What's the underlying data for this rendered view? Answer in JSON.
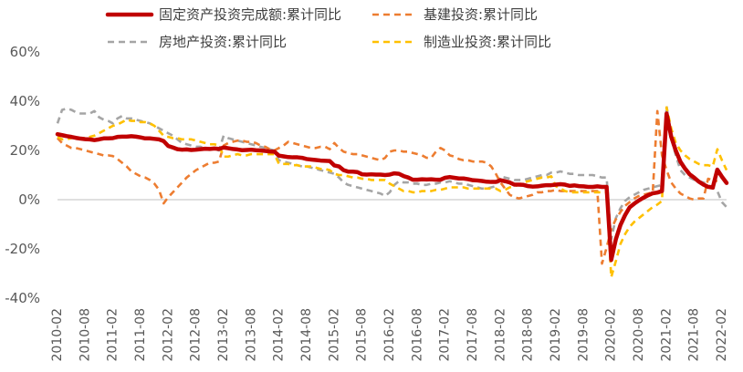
{
  "chart_data": {
    "type": "line",
    "title": "",
    "xlabel": "",
    "ylabel": "",
    "ylim": [
      -40,
      60
    ],
    "y_ticks": [
      60,
      40,
      20,
      0,
      -20,
      -40
    ],
    "y_tick_labels": [
      "60%",
      "40%",
      "20%",
      "0%",
      "-20%",
      "-40%"
    ],
    "grid": false,
    "legend_position": "top",
    "x_tick_labels": [
      "2010-02",
      "2010-08",
      "2011-02",
      "2011-08",
      "2012-02",
      "2012-08",
      "2013-02",
      "2013-08",
      "2014-02",
      "2014-08",
      "2015-02",
      "2015-08",
      "2016-02",
      "2016-08",
      "2017-02",
      "2017-08",
      "2018-02",
      "2018-08",
      "2019-02",
      "2019-08",
      "2020-02",
      "2020-08",
      "2021-02",
      "2021-08",
      "2022-02"
    ],
    "x_start": "2010-02",
    "series": [
      {
        "name": "固定资产投资完成额:累计同比",
        "color": "#c00000",
        "style": "solid",
        "values": [
          26.6,
          26.2,
          25.8,
          25.5,
          25.1,
          24.8,
          24.6,
          24.5,
          24.2,
          24.5,
          24.9,
          24.9,
          25.0,
          25.5,
          25.6,
          25.6,
          25.8,
          25.6,
          25.3,
          24.9,
          24.9,
          24.7,
          24.5,
          23.8,
          21.8,
          21.2,
          20.5,
          20.3,
          20.4,
          20.2,
          20.3,
          20.5,
          20.7,
          20.6,
          20.8,
          20.6,
          21.2,
          20.9,
          20.6,
          20.4,
          20.1,
          20.2,
          20.3,
          20.1,
          20.0,
          19.8,
          19.6,
          19.5,
          17.9,
          17.6,
          17.3,
          17.2,
          17.2,
          17.0,
          16.5,
          16.3,
          16.1,
          15.9,
          15.8,
          15.7,
          13.9,
          13.5,
          12.0,
          11.4,
          11.4,
          11.2,
          10.3,
          10.2,
          10.3,
          10.2,
          10.2,
          10.0,
          10.2,
          10.7,
          10.5,
          9.6,
          9.0,
          8.1,
          8.1,
          8.3,
          8.2,
          8.3,
          8.1,
          8.1,
          8.9,
          9.2,
          8.9,
          8.6,
          8.6,
          8.3,
          7.9,
          7.8,
          7.6,
          7.3,
          7.2,
          7.2,
          7.9,
          7.5,
          7.0,
          6.1,
          6.1,
          6.0,
          5.5,
          5.3,
          5.4,
          5.7,
          5.9,
          5.9,
          6.1,
          6.3,
          6.1,
          5.6,
          5.8,
          5.5,
          5.4,
          5.2,
          5.2,
          5.4,
          5.2,
          5.2,
          -24.5,
          -16.1,
          -10.3,
          -6.3,
          -3.1,
          -1.6,
          -0.3,
          0.8,
          1.8,
          2.6,
          2.9,
          3.5,
          35.0,
          25.6,
          19.9,
          15.4,
          12.6,
          10.3,
          8.9,
          7.3,
          6.1,
          5.2,
          4.9,
          12.2,
          9.3,
          6.8
        ]
      },
      {
        "name": "基建投资:累计同比",
        "color": "#ed7d31",
        "style": "dashed",
        "values": [
          25.0,
          23.0,
          22.0,
          21.0,
          21.0,
          20.5,
          20.0,
          19.5,
          19.0,
          18.5,
          18.0,
          18.0,
          17.7,
          16.5,
          15.0,
          13.5,
          11.5,
          10.5,
          9.5,
          9.0,
          8.0,
          6.5,
          4.0,
          -1.5,
          1.0,
          3.0,
          5.0,
          7.0,
          9.0,
          10.5,
          12.0,
          13.0,
          14.0,
          15.0,
          15.0,
          15.5,
          22.0,
          23.0,
          23.5,
          24.0,
          24.0,
          23.5,
          23.5,
          23.0,
          22.0,
          21.5,
          20.5,
          20.0,
          21.0,
          22.0,
          23.5,
          23.0,
          22.5,
          22.0,
          21.5,
          21.0,
          21.0,
          21.5,
          21.5,
          20.5,
          23.0,
          21.0,
          19.5,
          19.0,
          18.5,
          18.5,
          18.0,
          17.5,
          17.0,
          16.5,
          16.0,
          17.0,
          19.5,
          20.0,
          20.0,
          19.5,
          19.5,
          19.0,
          18.5,
          18.0,
          17.0,
          17.0,
          19.5,
          21.0,
          20.0,
          18.0,
          17.5,
          16.5,
          16.0,
          16.0,
          15.5,
          15.5,
          15.5,
          15.0,
          13.5,
          10.5,
          7.0,
          4.5,
          2.0,
          1.0,
          0.5,
          1.0,
          1.5,
          2.0,
          3.0,
          3.0,
          3.5,
          3.5,
          4.0,
          3.5,
          3.5,
          3.5,
          3.5,
          3.5,
          3.5,
          3.5,
          3.5,
          3.5,
          -26.0,
          -19.5,
          -12.0,
          -8.0,
          -5.0,
          -2.5,
          -1.0,
          0.5,
          1.5,
          2.0,
          2.5,
          3.0,
          36.0,
          18.0,
          12.0,
          7.0,
          4.5,
          2.5,
          1.5,
          0.5,
          0.0,
          0.5,
          0.5,
          8.5,
          8.0,
          7.5
        ]
      },
      {
        "name": "房地产投资:累计同比",
        "color": "#a5a5a5",
        "style": "dashed",
        "values": [
          31.0,
          36.5,
          37.0,
          36.5,
          35.5,
          35.0,
          35.0,
          35.0,
          36.0,
          33.5,
          32.5,
          32.0,
          31.0,
          33.0,
          34.0,
          33.0,
          33.0,
          32.5,
          32.0,
          31.5,
          31.0,
          30.0,
          29.0,
          28.0,
          27.0,
          26.0,
          24.5,
          23.0,
          22.5,
          22.0,
          21.5,
          21.5,
          21.0,
          20.5,
          20.5,
          20.0,
          26.0,
          25.0,
          24.5,
          24.0,
          23.5,
          23.0,
          22.5,
          22.0,
          21.5,
          21.0,
          20.5,
          20.0,
          16.0,
          15.5,
          15.0,
          14.5,
          14.0,
          13.5,
          13.5,
          13.0,
          12.5,
          12.0,
          11.5,
          11.0,
          10.5,
          9.0,
          7.0,
          6.0,
          5.5,
          5.0,
          4.5,
          4.0,
          3.5,
          3.0,
          2.5,
          1.5,
          3.0,
          6.0,
          7.5,
          7.0,
          7.0,
          6.5,
          6.5,
          6.0,
          6.0,
          6.5,
          6.5,
          7.0,
          7.0,
          7.5,
          7.0,
          6.5,
          6.5,
          6.0,
          5.5,
          5.0,
          4.5,
          4.5,
          5.0,
          5.5,
          9.5,
          9.0,
          8.5,
          8.0,
          8.0,
          8.0,
          8.5,
          9.0,
          9.5,
          10.0,
          10.0,
          11.0,
          11.0,
          11.5,
          11.0,
          10.5,
          10.5,
          10.0,
          10.0,
          10.0,
          10.0,
          9.5,
          9.0,
          9.0,
          -16.0,
          -7.5,
          -3.5,
          -0.5,
          1.0,
          2.0,
          3.0,
          4.0,
          4.5,
          5.0,
          5.5,
          6.0,
          38.0,
          25.0,
          18.0,
          12.0,
          10.0,
          9.0,
          8.0,
          7.5,
          7.0,
          6.0,
          5.0,
          3.5,
          -1.0,
          -3.0
        ]
      },
      {
        "name": "制造业投资:累计同比",
        "color": "#ffc000",
        "style": "dashed",
        "values": [
          25.5,
          24.5,
          24.5,
          25.0,
          25.5,
          25.0,
          25.0,
          25.5,
          26.0,
          27.0,
          28.0,
          29.0,
          30.0,
          30.5,
          31.5,
          32.5,
          32.0,
          32.0,
          31.5,
          31.5,
          31.0,
          30.0,
          28.0,
          26.0,
          25.5,
          25.0,
          25.0,
          24.5,
          24.5,
          24.5,
          24.0,
          23.5,
          23.0,
          22.5,
          22.5,
          22.0,
          17.5,
          17.5,
          18.0,
          18.5,
          18.0,
          18.0,
          18.5,
          18.5,
          18.5,
          18.5,
          18.5,
          18.5,
          14.5,
          14.5,
          14.5,
          14.0,
          14.0,
          13.5,
          13.5,
          13.5,
          13.0,
          12.5,
          12.5,
          12.0,
          10.5,
          10.0,
          10.0,
          9.5,
          9.0,
          9.0,
          8.5,
          8.5,
          8.0,
          8.0,
          8.0,
          8.0,
          6.5,
          5.5,
          4.5,
          3.5,
          3.5,
          3.0,
          3.0,
          3.5,
          3.5,
          3.5,
          4.0,
          4.0,
          4.5,
          5.0,
          5.0,
          5.0,
          5.0,
          4.5,
          4.5,
          4.5,
          4.5,
          4.5,
          4.5,
          4.5,
          3.5,
          4.0,
          5.0,
          5.5,
          6.0,
          7.0,
          7.5,
          8.0,
          8.5,
          9.0,
          9.0,
          9.5,
          5.5,
          4.5,
          3.5,
          3.0,
          3.0,
          3.0,
          3.0,
          3.0,
          3.0,
          3.0,
          3.0,
          3.0,
          -31.5,
          -25.0,
          -18.0,
          -14.0,
          -11.0,
          -9.0,
          -7.5,
          -6.0,
          -4.5,
          -3.0,
          -2.0,
          -0.5,
          37.5,
          29.0,
          23.0,
          20.0,
          18.0,
          16.5,
          15.5,
          14.5,
          14.0,
          14.0,
          13.5,
          20.5,
          16.0,
          12.0
        ]
      }
    ]
  }
}
